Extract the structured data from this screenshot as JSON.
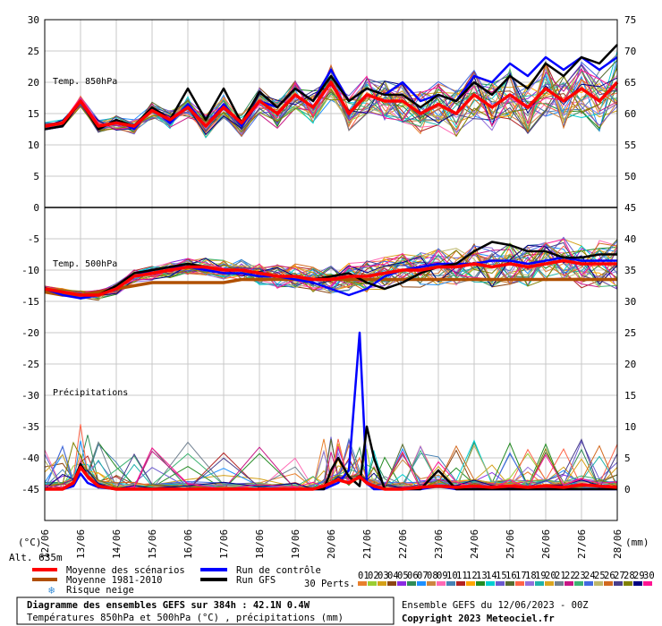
{
  "chart_data": {
    "type": "line",
    "title": "Diagramme des ensembles GEFS sur 384h : 42.1N 0.4W",
    "subtitle": "Températures 850hPa et 500hPa (°C) , précipitations (mm)",
    "altitude_label": "Alt. 635m",
    "left_axis_unit": "(°C)",
    "right_axis_unit": "(mm)",
    "left_ticks": [
      "30",
      "25",
      "20",
      "15",
      "10",
      "5",
      "0",
      "-5",
      "-10",
      "-15",
      "-20",
      "-25",
      "-30",
      "-35",
      "-40",
      "-45"
    ],
    "right_ticks": [
      "75",
      "70",
      "65",
      "60",
      "55",
      "50",
      "45",
      "40",
      "35",
      "30",
      "25",
      "20",
      "15",
      "10",
      "5",
      "0"
    ],
    "x_ticks": [
      "12/06",
      "13/06",
      "14/06",
      "15/06",
      "16/06",
      "17/06",
      "18/06",
      "19/06",
      "20/06",
      "21/06",
      "22/06",
      "23/06",
      "24/06",
      "25/06",
      "26/06",
      "27/06",
      "28/06"
    ],
    "panel_labels": {
      "t850": "Temp. 850hPa",
      "t500": "Temp. 500hPa",
      "precip": "Précipitations"
    },
    "legend": {
      "mean": "Moyenne des scénarios",
      "clim": "Moyenne 1981-2010",
      "snow": "Risque neige",
      "control": "Run de contrôle",
      "gfs": "Run GFS",
      "perts": "30 Perts."
    },
    "pert_numbers": [
      "01",
      "02",
      "03",
      "04",
      "05",
      "06",
      "07",
      "08",
      "09",
      "10",
      "11",
      "12",
      "13",
      "14",
      "15",
      "16",
      "17",
      "18",
      "19",
      "20",
      "21",
      "22",
      "23",
      "24",
      "25",
      "26",
      "27",
      "28",
      "29",
      "30"
    ],
    "pert_colors": [
      "#e87f2c",
      "#9acd32",
      "#d4a017",
      "#8b4513",
      "#8a2be2",
      "#2e8b57",
      "#1e90ff",
      "#cd853f",
      "#ff69b4",
      "#4682b4",
      "#b22222",
      "#ffa500",
      "#228b22",
      "#00ced1",
      "#6a5acd",
      "#556b2f",
      "#ff6347",
      "#9370db",
      "#20b2aa",
      "#daa520",
      "#708090",
      "#c71585",
      "#3cb371",
      "#4169e1",
      "#bdb76b",
      "#d2691e",
      "#483d8b",
      "#808000",
      "#000080",
      "#ff1493"
    ],
    "series_colors": {
      "mean": "#ff0000",
      "clim": "#b05000",
      "control": "#0000ff",
      "gfs": "#000000"
    },
    "run_info": "Ensemble GEFS du 12/06/2023 - 00Z",
    "copyright": "Copyright 2023 Meteociel.fr",
    "series_t850": {
      "x_days": [
        0,
        0.5,
        1,
        1.5,
        2,
        2.5,
        3,
        3.5,
        4,
        4.5,
        5,
        5.5,
        6,
        6.5,
        7,
        7.5,
        8,
        8.5,
        9,
        9.5,
        10,
        10.5,
        11,
        11.5,
        12,
        12.5,
        13,
        13.5,
        14,
        14.5,
        15,
        15.5,
        16
      ],
      "mean": [
        13,
        13.5,
        17,
        13,
        13.5,
        13,
        15.5,
        14,
        16,
        13,
        16,
        13.5,
        17,
        15,
        18,
        16,
        20,
        15,
        18,
        17,
        17,
        15,
        16.5,
        15,
        18,
        16,
        18,
        16,
        19,
        17,
        19,
        17,
        20
      ],
      "control": [
        12.5,
        13,
        17,
        12.5,
        14,
        12.5,
        16,
        13.5,
        16.5,
        13,
        16.5,
        13,
        17,
        16,
        19,
        17,
        22,
        17,
        19,
        18,
        20,
        17,
        18,
        17,
        21,
        20,
        23,
        21,
        24,
        22,
        24,
        22,
        24
      ],
      "gfs": [
        12.5,
        13,
        17,
        12.5,
        14,
        13,
        16,
        14,
        19,
        14,
        19,
        13.5,
        18.5,
        16,
        19,
        17,
        21,
        17,
        19,
        18,
        18,
        16,
        18,
        17,
        20,
        18,
        21,
        19,
        23,
        21,
        24,
        23,
        26
      ]
    },
    "series_t500": {
      "x_days": [
        0,
        0.5,
        1,
        1.5,
        2,
        2.5,
        3,
        3.5,
        4,
        4.5,
        5,
        5.5,
        6,
        6.5,
        7,
        7.5,
        8,
        8.5,
        9,
        9.5,
        10,
        10.5,
        11,
        11.5,
        12,
        12.5,
        13,
        13.5,
        14,
        14.5,
        15,
        15.5,
        16
      ],
      "mean": [
        -13,
        -13.5,
        -14,
        -14,
        -13,
        -11,
        -10.5,
        -10,
        -9.5,
        -9.5,
        -10,
        -10,
        -10.5,
        -11,
        -11,
        -11.5,
        -11.5,
        -11,
        -11,
        -10.5,
        -10,
        -10,
        -9.5,
        -9.5,
        -9,
        -9.5,
        -9,
        -9.5,
        -9,
        -8.5,
        -9,
        -9,
        -9
      ],
      "clim": [
        -13.5,
        -14,
        -14,
        -13.5,
        -13,
        -12.5,
        -12,
        -12,
        -12,
        -12,
        -12,
        -11.5,
        -11.5,
        -11.5,
        -11.5,
        -11.5,
        -11.5,
        -11.5,
        -11.5,
        -11.5,
        -11.5,
        -11.5,
        -11.5,
        -11.5,
        -11.5,
        -11.5,
        -11.5,
        -11.5,
        -11.5,
        -11.5,
        -11.5,
        -11.5,
        -11.5
      ],
      "control": [
        -13,
        -14,
        -14.5,
        -14,
        -13,
        -11,
        -10,
        -9.5,
        -9.5,
        -10,
        -10.5,
        -10.5,
        -11,
        -11,
        -11.5,
        -12,
        -13,
        -14,
        -13,
        -11,
        -10,
        -9.5,
        -9,
        -9,
        -9,
        -8.5,
        -8.5,
        -9,
        -8.5,
        -8,
        -8.5,
        -8.5,
        -8.5
      ],
      "gfs": [
        -13,
        -13.5,
        -14,
        -14,
        -12.5,
        -10.5,
        -10,
        -9.5,
        -9,
        -9.5,
        -10,
        -10,
        -10.5,
        -11,
        -11,
        -11.5,
        -11,
        -10.5,
        -12,
        -13,
        -12,
        -10.5,
        -9.5,
        -9,
        -7,
        -5.5,
        -6,
        -7,
        -7,
        -8,
        -8,
        -7.5,
        -7.5
      ]
    },
    "series_precip": {
      "x_days": [
        0,
        0.5,
        0.8,
        1,
        1.2,
        1.5,
        2,
        2.5,
        3,
        4,
        5,
        6,
        7,
        7.5,
        7.8,
        8,
        8.2,
        8.5,
        8.8,
        9,
        9.2,
        9.5,
        10,
        10.5,
        11,
        11.5,
        12,
        12.5,
        13,
        13.5,
        14,
        14.5,
        15,
        15.5,
        16
      ],
      "mean": [
        0,
        0,
        1,
        3.5,
        2,
        0.5,
        0,
        0,
        0,
        0,
        0,
        0,
        0,
        0,
        0.5,
        1,
        1.5,
        1,
        2,
        1,
        0.5,
        0,
        0,
        0.3,
        0.5,
        0.3,
        0.5,
        0.3,
        0.5,
        0.3,
        0.5,
        0.3,
        0.7,
        0.5,
        0.3
      ],
      "control": [
        0,
        0,
        0.5,
        2.5,
        1,
        0.3,
        0,
        0,
        0,
        0,
        0,
        0,
        0,
        0,
        0,
        0.5,
        1,
        3,
        25,
        1,
        0,
        0,
        0,
        0,
        0.5,
        0,
        0,
        0,
        0,
        0,
        0,
        0,
        0,
        0,
        0
      ],
      "gfs": [
        0,
        0,
        1,
        4,
        2,
        0.5,
        0,
        0,
        0,
        0,
        0,
        0,
        0,
        0,
        0,
        3,
        5,
        2,
        0.5,
        10,
        5,
        0,
        0,
        0,
        3,
        0,
        0,
        0,
        0,
        0,
        0,
        0,
        0,
        0,
        0
      ]
    }
  }
}
